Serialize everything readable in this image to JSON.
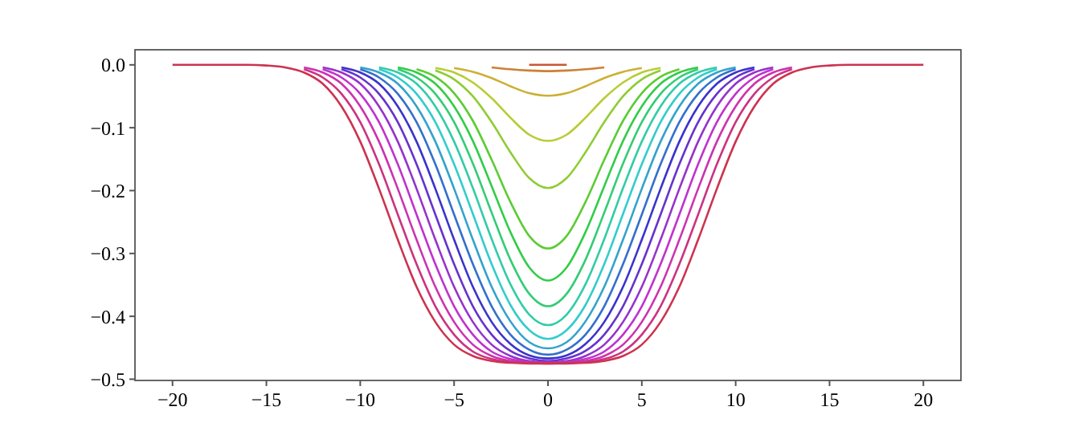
{
  "chart_data": {
    "type": "line",
    "x": [
      -20,
      -16,
      -15,
      -14,
      -13,
      -12,
      -11,
      -10,
      -9,
      -8,
      -7,
      -6,
      -5,
      -4,
      -3,
      -2,
      -1,
      0,
      1,
      2,
      3,
      4,
      5,
      6,
      7,
      8,
      9,
      10,
      11,
      12,
      13,
      14,
      15,
      16,
      20
    ],
    "xlim": [
      -22,
      22
    ],
    "ylim": [
      -0.502,
      0.024
    ],
    "xticks": [
      {
        "value": -20,
        "label": "−20"
      },
      {
        "value": -15,
        "label": "−15"
      },
      {
        "value": -10,
        "label": "−10"
      },
      {
        "value": -5,
        "label": "−5"
      },
      0,
      5,
      10,
      15,
      20
    ],
    "yticks": [
      {
        "value": 0,
        "label": "0.0"
      },
      {
        "value": -0.1,
        "label": "−0.1"
      },
      {
        "value": -0.2,
        "label": "−0.2"
      },
      {
        "value": -0.3,
        "label": "−0.3"
      },
      {
        "value": -0.4,
        "label": "−0.4"
      },
      {
        "value": -0.5,
        "label": "−0.5"
      }
    ],
    "grid": false,
    "marker": "none",
    "line_style": "solid",
    "series": [
      {
        "color": "#cc5533",
        "x": [
          -1,
          0,
          1
        ],
        "values": [
          0,
          0,
          0
        ]
      },
      {
        "color": "#cc8033",
        "x": [
          -3,
          -2,
          -1,
          0,
          1,
          2,
          3
        ],
        "values": [
          -0.004,
          -0.007,
          -0.009,
          -0.01,
          -0.009,
          -0.007,
          -0.004
        ]
      },
      {
        "color": "#ccb033",
        "x": [
          -5,
          -4,
          -3,
          -2,
          -1,
          0,
          1,
          2,
          3,
          4,
          5
        ],
        "values": [
          -0.005,
          -0.011,
          -0.021,
          -0.034,
          -0.045,
          -0.049,
          -0.045,
          -0.034,
          -0.021,
          -0.011,
          -0.005
        ]
      },
      {
        "color": "#b8cc33",
        "x": [
          -6,
          -5,
          -4,
          -3,
          -2,
          -1,
          0,
          1,
          2,
          3,
          4,
          5,
          6
        ],
        "values": [
          -0.005,
          -0.012,
          -0.028,
          -0.053,
          -0.084,
          -0.111,
          -0.121,
          -0.111,
          -0.084,
          -0.053,
          -0.028,
          -0.012,
          -0.005
        ]
      },
      {
        "color": "#8fcc33",
        "x": [
          -6,
          -5,
          -4,
          -3,
          -2,
          -1,
          0,
          1,
          2,
          3,
          4,
          5,
          6
        ],
        "values": [
          -0.009,
          -0.023,
          -0.05,
          -0.091,
          -0.139,
          -0.18,
          -0.196,
          -0.18,
          -0.139,
          -0.091,
          -0.05,
          -0.023,
          -0.009
        ]
      },
      {
        "color": "#5ccc33",
        "x": [
          -7,
          -6,
          -5,
          -4,
          -3,
          -2,
          -1,
          0,
          1,
          2,
          3,
          4,
          5,
          6,
          7
        ],
        "values": [
          -0.007,
          -0.019,
          -0.045,
          -0.089,
          -0.151,
          -0.218,
          -0.272,
          -0.292,
          -0.272,
          -0.218,
          -0.151,
          -0.089,
          -0.045,
          -0.019,
          -0.007
        ]
      },
      {
        "color": "#33cc47",
        "x": [
          -8,
          -7,
          -6,
          -5,
          -4,
          -3,
          -2,
          -1,
          0,
          1,
          2,
          3,
          4,
          5,
          6,
          7,
          8
        ],
        "values": [
          -0.004,
          -0.012,
          -0.03,
          -0.066,
          -0.121,
          -0.193,
          -0.266,
          -0.322,
          -0.343,
          -0.322,
          -0.266,
          -0.193,
          -0.121,
          -0.066,
          -0.03,
          -0.012,
          -0.004
        ]
      },
      {
        "color": "#33cc75",
        "x": [
          -8,
          -7,
          -6,
          -5,
          -4,
          -3,
          -2,
          -1,
          0,
          1,
          2,
          3,
          4,
          5,
          6,
          7,
          8
        ],
        "values": [
          -0.007,
          -0.02,
          -0.046,
          -0.091,
          -0.157,
          -0.235,
          -0.31,
          -0.364,
          -0.384,
          -0.364,
          -0.31,
          -0.235,
          -0.157,
          -0.091,
          -0.046,
          -0.02,
          -0.007
        ]
      },
      {
        "color": "#33cca6",
        "x": [
          -9,
          -8,
          -7,
          -6,
          -5,
          -4,
          -3,
          -2,
          -1,
          0,
          1,
          2,
          3,
          4,
          5,
          6,
          7,
          8,
          9
        ],
        "values": [
          -0.004,
          -0.012,
          -0.03,
          -0.066,
          -0.122,
          -0.196,
          -0.277,
          -0.349,
          -0.397,
          -0.414,
          -0.397,
          -0.349,
          -0.277,
          -0.196,
          -0.122,
          -0.066,
          -0.03,
          -0.012,
          -0.004
        ]
      },
      {
        "color": "#33cccc",
        "x": [
          -9,
          -8,
          -7,
          -6,
          -5,
          -4,
          -3,
          -2,
          -1,
          0,
          1,
          2,
          3,
          4,
          5,
          6,
          7,
          8,
          9
        ],
        "values": [
          -0.007,
          -0.02,
          -0.046,
          -0.091,
          -0.158,
          -0.237,
          -0.317,
          -0.382,
          -0.422,
          -0.436,
          -0.422,
          -0.382,
          -0.317,
          -0.237,
          -0.158,
          -0.091,
          -0.046,
          -0.02,
          -0.007
        ]
      },
      {
        "color": "#33a3cc",
        "x": [
          -10,
          -9,
          -8,
          -7,
          -6,
          -5,
          -4,
          -3,
          -2,
          -1,
          0,
          1,
          2,
          3,
          4,
          5,
          6,
          7,
          8,
          9,
          10
        ],
        "values": [
          -0.004,
          -0.012,
          -0.03,
          -0.066,
          -0.122,
          -0.197,
          -0.278,
          -0.353,
          -0.408,
          -0.441,
          -0.451,
          -0.441,
          -0.408,
          -0.353,
          -0.278,
          -0.197,
          -0.122,
          -0.066,
          -0.03,
          -0.012,
          -0.004
        ]
      },
      {
        "color": "#3370cc",
        "x": [
          -10,
          -9,
          -8,
          -7,
          -6,
          -5,
          -4,
          -3,
          -2,
          -1,
          0,
          1,
          2,
          3,
          4,
          5,
          6,
          7,
          8,
          9,
          10
        ],
        "values": [
          -0.007,
          -0.02,
          -0.046,
          -0.091,
          -0.158,
          -0.238,
          -0.317,
          -0.384,
          -0.429,
          -0.453,
          -0.461,
          -0.453,
          -0.429,
          -0.384,
          -0.317,
          -0.238,
          -0.158,
          -0.091,
          -0.046,
          -0.02,
          -0.007
        ]
      },
      {
        "color": "#3a33cc",
        "x": [
          -11,
          -10,
          -9,
          -8,
          -7,
          -6,
          -5,
          -4,
          -3,
          -2,
          -1,
          0,
          1,
          2,
          3,
          4,
          5,
          6,
          7,
          8,
          9,
          10,
          11
        ],
        "values": [
          -0.004,
          -0.012,
          -0.03,
          -0.066,
          -0.122,
          -0.197,
          -0.278,
          -0.353,
          -0.409,
          -0.444,
          -0.462,
          -0.467,
          -0.462,
          -0.444,
          -0.409,
          -0.353,
          -0.278,
          -0.197,
          -0.122,
          -0.066,
          -0.03,
          -0.012,
          -0.004
        ]
      },
      {
        "color": "#6633cc",
        "x": [
          -11,
          -10,
          -9,
          -8,
          -7,
          -6,
          -5,
          -4,
          -3,
          -2,
          -1,
          0,
          1,
          2,
          3,
          4,
          5,
          6,
          7,
          8,
          9,
          10,
          11
        ],
        "values": [
          -0.007,
          -0.02,
          -0.046,
          -0.091,
          -0.158,
          -0.238,
          -0.317,
          -0.384,
          -0.429,
          -0.455,
          -0.467,
          -0.471,
          -0.467,
          -0.455,
          -0.429,
          -0.384,
          -0.317,
          -0.238,
          -0.158,
          -0.091,
          -0.046,
          -0.02,
          -0.007
        ]
      },
      {
        "color": "#9633cc",
        "x": [
          -12,
          -11,
          -10,
          -9,
          -8,
          -7,
          -6,
          -5,
          -4,
          -3,
          -2,
          -1,
          0,
          1,
          2,
          3,
          4,
          5,
          6,
          7,
          8,
          9,
          10,
          11,
          12
        ],
        "values": [
          -0.004,
          -0.012,
          -0.03,
          -0.066,
          -0.122,
          -0.197,
          -0.278,
          -0.353,
          -0.409,
          -0.445,
          -0.463,
          -0.471,
          -0.473,
          -0.471,
          -0.463,
          -0.445,
          -0.409,
          -0.353,
          -0.278,
          -0.197,
          -0.122,
          -0.066,
          -0.03,
          -0.012,
          -0.004
        ]
      },
      {
        "color": "#c033cc",
        "x": [
          -12,
          -11,
          -10,
          -9,
          -8,
          -7,
          -6,
          -5,
          -4,
          -3,
          -2,
          -1,
          0,
          1,
          2,
          3,
          4,
          5,
          6,
          7,
          8,
          9,
          10,
          11,
          12
        ],
        "values": [
          -0.007,
          -0.02,
          -0.046,
          -0.091,
          -0.158,
          -0.238,
          -0.317,
          -0.384,
          -0.429,
          -0.456,
          -0.468,
          -0.473,
          -0.474,
          -0.473,
          -0.468,
          -0.456,
          -0.429,
          -0.384,
          -0.317,
          -0.238,
          -0.158,
          -0.091,
          -0.046,
          -0.02,
          -0.007
        ]
      },
      {
        "color": "#cc33b0",
        "x": [
          -13,
          -12,
          -11,
          -10,
          -9,
          -8,
          -7,
          -6,
          -5,
          -4,
          -3,
          -2,
          -1,
          0,
          1,
          2,
          3,
          4,
          5,
          6,
          7,
          8,
          9,
          10,
          11,
          12,
          13
        ],
        "values": [
          -0.004,
          -0.012,
          -0.03,
          -0.066,
          -0.122,
          -0.197,
          -0.278,
          -0.353,
          -0.409,
          -0.445,
          -0.463,
          -0.471,
          -0.474,
          -0.474,
          -0.474,
          -0.471,
          -0.463,
          -0.445,
          -0.409,
          -0.353,
          -0.278,
          -0.197,
          -0.122,
          -0.066,
          -0.03,
          -0.012,
          -0.004
        ]
      },
      {
        "color": "#cc3380",
        "x": [
          -13,
          -12,
          -11,
          -10,
          -9,
          -8,
          -7,
          -6,
          -5,
          -4,
          -3,
          -2,
          -1,
          0,
          1,
          2,
          3,
          4,
          5,
          6,
          7,
          8,
          9,
          10,
          11,
          12,
          13
        ],
        "values": [
          -0.007,
          -0.02,
          -0.046,
          -0.091,
          -0.158,
          -0.238,
          -0.317,
          -0.384,
          -0.429,
          -0.456,
          -0.468,
          -0.473,
          -0.474,
          -0.475,
          -0.474,
          -0.473,
          -0.468,
          -0.456,
          -0.429,
          -0.384,
          -0.317,
          -0.238,
          -0.158,
          -0.091,
          -0.046,
          -0.02,
          -0.007
        ]
      },
      {
        "color": "#cc3350",
        "values": [
          0,
          0,
          -0.001,
          -0.004,
          -0.012,
          -0.03,
          -0.066,
          -0.122,
          -0.197,
          -0.278,
          -0.353,
          -0.409,
          -0.445,
          -0.463,
          -0.471,
          -0.474,
          -0.475,
          -0.475,
          -0.475,
          -0.474,
          -0.471,
          -0.463,
          -0.445,
          -0.409,
          -0.353,
          -0.278,
          -0.197,
          -0.122,
          -0.066,
          -0.03,
          -0.012,
          -0.004,
          -0.001,
          0,
          0
        ]
      }
    ]
  }
}
